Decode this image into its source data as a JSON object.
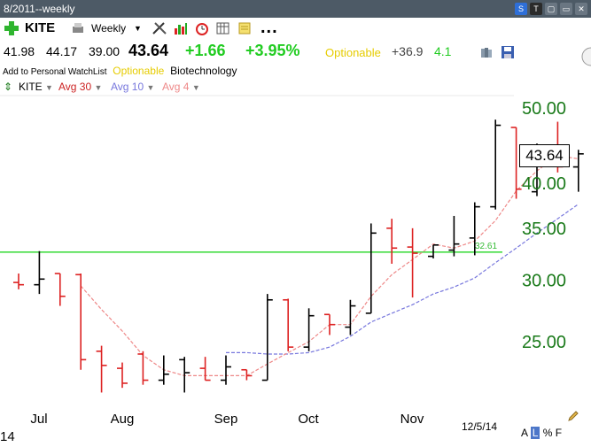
{
  "window": {
    "title": "8/2011--weekly"
  },
  "toolbar": {
    "symbol": "KITE",
    "period": "Weekly",
    "more": "..."
  },
  "quote": {
    "open": "41.98",
    "high": "44.17",
    "low": "39.00",
    "last": "43.64",
    "change": "+1.66",
    "change_pct": "+3.95%",
    "optionable": "Optionable",
    "metric1": "+36.9",
    "metric2": "4.1"
  },
  "watchlist": {
    "add_label": "Add to Personal WatchList",
    "optionable": "Optionable",
    "industry": "Biotechnology"
  },
  "legend": [
    {
      "label": "KITE",
      "color": "#000000"
    },
    {
      "label": "Avg 30",
      "color": "#cc2222"
    },
    {
      "label": "Avg 10",
      "color": "#7777dd"
    },
    {
      "label": "Avg 4",
      "color": "#ee8888"
    }
  ],
  "price_label": "43.64",
  "footer": {
    "date": "12/5/14",
    "left_text": "14",
    "a": "A",
    "l": "L",
    "pct": "%",
    "f": "F"
  },
  "colors": {
    "up": "#000000",
    "down": "#dd2222",
    "hline": "#44dd44",
    "axis_text": "#1a7a1a",
    "avg4": "#ee8888",
    "avg10": "#7777dd"
  },
  "chart_data": {
    "type": "ohlc",
    "yaxis": {
      "ticks": [
        50.0,
        40.0,
        35.0,
        30.0,
        25.0
      ],
      "tick_labels": [
        "50.00",
        "40.00",
        "35.00",
        "30.00",
        "25.00"
      ],
      "scale": "log"
    },
    "xaxis": {
      "labels": [
        "Jul",
        "Aug",
        "Sep",
        "Oct",
        "Nov"
      ]
    },
    "hline": {
      "value": 32.61,
      "label": "32.61"
    },
    "bars": [
      {
        "o": 29.8,
        "h": 30.6,
        "l": 29.2,
        "c": 29.6,
        "dir": "down"
      },
      {
        "o": 29.6,
        "h": 32.7,
        "l": 28.8,
        "c": 30.1,
        "dir": "up"
      },
      {
        "o": 30.6,
        "h": 30.6,
        "l": 27.8,
        "c": 28.6,
        "dir": "down"
      },
      {
        "o": 30.5,
        "h": 30.6,
        "l": 23.0,
        "c": 23.7,
        "dir": "down"
      },
      {
        "o": 24.3,
        "h": 24.7,
        "l": 21.5,
        "c": 23.3,
        "dir": "down"
      },
      {
        "o": 23.1,
        "h": 23.5,
        "l": 21.8,
        "c": 22.1,
        "dir": "down"
      },
      {
        "o": 24.1,
        "h": 24.3,
        "l": 22.0,
        "c": 22.3,
        "dir": "down"
      },
      {
        "o": 22.3,
        "h": 24.0,
        "l": 22.0,
        "c": 22.7,
        "dir": "up"
      },
      {
        "o": 23.7,
        "h": 23.9,
        "l": 21.5,
        "c": 22.8,
        "dir": "up"
      },
      {
        "o": 23.1,
        "h": 23.9,
        "l": 22.3,
        "c": 22.3,
        "dir": "down"
      },
      {
        "o": 22.3,
        "h": 24.0,
        "l": 22.0,
        "c": 23.2,
        "dir": "up"
      },
      {
        "o": 23.0,
        "h": 23.0,
        "l": 22.3,
        "c": 22.6,
        "dir": "down"
      },
      {
        "o": 22.3,
        "h": 28.8,
        "l": 22.3,
        "c": 28.3,
        "dir": "up"
      },
      {
        "o": 28.3,
        "h": 28.4,
        "l": 24.3,
        "c": 24.6,
        "dir": "down"
      },
      {
        "o": 24.6,
        "h": 27.6,
        "l": 24.3,
        "c": 27.0,
        "dir": "up"
      },
      {
        "o": 27.1,
        "h": 27.1,
        "l": 25.5,
        "c": 26.3,
        "dir": "down"
      },
      {
        "o": 26.1,
        "h": 28.3,
        "l": 25.5,
        "c": 27.8,
        "dir": "up"
      },
      {
        "o": 27.2,
        "h": 35.5,
        "l": 27.2,
        "c": 34.5,
        "dir": "up"
      },
      {
        "o": 35.0,
        "h": 36.0,
        "l": 31.5,
        "c": 33.0,
        "dir": "down"
      },
      {
        "o": 33.1,
        "h": 35.0,
        "l": 28.5,
        "c": 32.5,
        "dir": "down"
      },
      {
        "o": 32.2,
        "h": 33.3,
        "l": 32.0,
        "c": 33.3,
        "dir": "up"
      },
      {
        "o": 32.8,
        "h": 36.3,
        "l": 32.2,
        "c": 33.4,
        "dir": "up"
      },
      {
        "o": 34.0,
        "h": 37.8,
        "l": 32.3,
        "c": 37.3,
        "dir": "up"
      },
      {
        "o": 37.3,
        "h": 48.3,
        "l": 37.0,
        "c": 47.5,
        "dir": "up"
      },
      {
        "o": 47.2,
        "h": 47.2,
        "l": 38.2,
        "c": 39.3,
        "dir": "down"
      },
      {
        "o": 39.0,
        "h": 45.0,
        "l": 38.5,
        "c": 44.3,
        "dir": "up"
      },
      {
        "o": 44.4,
        "h": 48.0,
        "l": 41.3,
        "c": 42.0,
        "dir": "down"
      },
      {
        "o": 41.98,
        "h": 44.17,
        "l": 39.0,
        "c": 43.64,
        "dir": "up"
      }
    ],
    "avg4": [
      null,
      null,
      null,
      29.5,
      27.5,
      25.8,
      24.0,
      23.0,
      22.6,
      22.6,
      22.6,
      22.6,
      23.4,
      24.2,
      25.0,
      26.3,
      26.3,
      28.6,
      30.5,
      31.9,
      33.4,
      33.0,
      33.7,
      35.8,
      39.1,
      41.5,
      43.4,
      43.0
    ],
    "avg10": [
      null,
      null,
      null,
      null,
      null,
      null,
      null,
      null,
      null,
      null,
      24.2,
      24.2,
      24.1,
      24.1,
      24.2,
      24.6,
      25.4,
      26.5,
      27.2,
      27.9,
      28.8,
      29.4,
      30.2,
      31.6,
      33.0,
      34.5,
      36.0,
      37.6
    ]
  }
}
